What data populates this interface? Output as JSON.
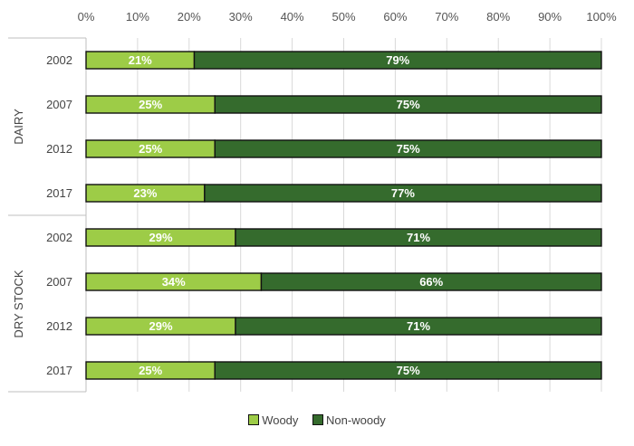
{
  "chart_data": {
    "type": "bar",
    "orientation": "horizontal",
    "stacked": true,
    "percent": true,
    "xlim": [
      0,
      100
    ],
    "x_ticks": [
      "0%",
      "10%",
      "20%",
      "30%",
      "40%",
      "50%",
      "60%",
      "70%",
      "80%",
      "90%",
      "100%"
    ],
    "x_axis_position": "top",
    "grid": true,
    "legend_position": "bottom",
    "groups": [
      {
        "label": "DAIRY",
        "categories": [
          "2002",
          "2007",
          "2012",
          "2017"
        ]
      },
      {
        "label": "DRY STOCK",
        "categories": [
          "2002",
          "2007",
          "2012",
          "2017"
        ]
      }
    ],
    "series": [
      {
        "name": "Woody",
        "color": "#9dcc47",
        "values": [
          21,
          25,
          25,
          23,
          29,
          34,
          29,
          25
        ],
        "labels": [
          "21%",
          "25%",
          "25%",
          "23%",
          "29%",
          "34%",
          "29%",
          "25%"
        ]
      },
      {
        "name": "Non-woody",
        "color": "#356b2d",
        "values": [
          79,
          75,
          75,
          77,
          71,
          66,
          71,
          75
        ],
        "labels": [
          "79%",
          "75%",
          "75%",
          "77%",
          "71%",
          "66%",
          "71%",
          "75%"
        ]
      }
    ]
  }
}
